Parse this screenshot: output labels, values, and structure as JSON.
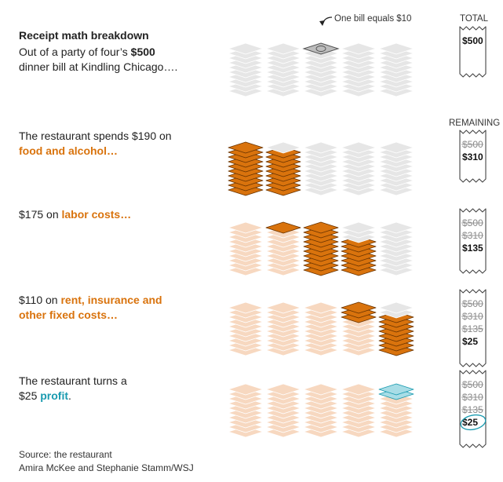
{
  "chart_data": {
    "type": "isotype-stack",
    "title": "Receipt math breakdown",
    "subtitle_prefix": "Out of a party of four’s ",
    "subtitle_amount": "$500",
    "subtitle_suffix": "dinner bill at Kindling Chicago….",
    "unit_label": "One bill equals $10",
    "unit_value": 10,
    "total_bills": 50,
    "stacks": 5,
    "bills_per_stack": 10,
    "total_header": "TOTAL",
    "remaining_header": "REMAINING",
    "total_amount": "$500",
    "rows": [
      {
        "key": "total",
        "pre": "",
        "highlight": "",
        "post": "",
        "value": 500,
        "bills": 0,
        "remaining": [
          "$500"
        ]
      },
      {
        "key": "food",
        "pre": "The restaurant spends $190 on ",
        "highlight": "food and alcohol…",
        "post": "",
        "value": 190,
        "bills": 19,
        "remaining": [
          "$500",
          "$310"
        ]
      },
      {
        "key": "labor",
        "pre": "$175 on ",
        "highlight": "labor costs…",
        "post": "",
        "value": 175,
        "bills": 17.5,
        "remaining": [
          "$500",
          "$310",
          "$135"
        ]
      },
      {
        "key": "fixed",
        "pre": "$110 on ",
        "highlight": "rent, insurance and other fixed costs…",
        "post": "",
        "value": 110,
        "bills": 11,
        "remaining": [
          "$500",
          "$310",
          "$135",
          "$25"
        ]
      },
      {
        "key": "profit",
        "pre": "The restaurant turns a $25 ",
        "highlight": "profit",
        "post": ".",
        "value": 25,
        "bills": 2.5,
        "remaining": [
          "$500",
          "$310",
          "$135",
          "$25"
        ]
      }
    ],
    "source": "Source: the restaurant",
    "credit": "Amira McKee and Stephanie Stamm/WSJ",
    "colors": {
      "empty": "#e6e6e6",
      "empty_stroke": "#ffffff",
      "spent": "#d9730d",
      "spent_stroke": "#6b3400",
      "past": "#f7d8c0",
      "profit": "#a8dde6",
      "profit_stroke": "#1a9bb0",
      "orange_text": "#d9730d",
      "teal_text": "#1a9bb0"
    }
  }
}
